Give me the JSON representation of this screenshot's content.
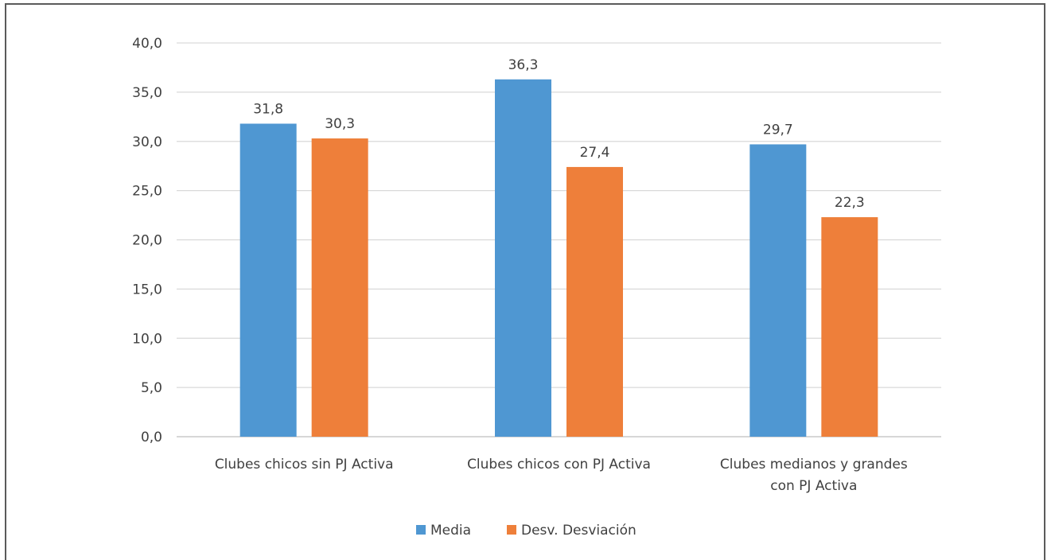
{
  "chart_data": {
    "type": "bar",
    "title": "",
    "xlabel": "",
    "ylabel": "",
    "ylim": [
      0,
      40
    ],
    "y_ticks": [
      "0,0",
      "5,0",
      "10,0",
      "15,0",
      "20,0",
      "25,0",
      "30,0",
      "35,0",
      "40,0"
    ],
    "grid": true,
    "legend_position": "bottom-center",
    "categories": [
      [
        "Clubes chicos sin PJ Activa"
      ],
      [
        "Clubes chicos con PJ Activa"
      ],
      [
        "Clubes medianos y grandes",
        "con PJ Activa"
      ]
    ],
    "series": [
      {
        "name": "Media",
        "color": "#4f97d2",
        "values": [
          31.8,
          36.3,
          29.7
        ],
        "labels": [
          "31,8",
          "36,3",
          "29,7"
        ]
      },
      {
        "name": "Desv. Desviación",
        "color": "#ee7f3a",
        "values": [
          30.3,
          27.4,
          22.3
        ],
        "labels": [
          "30,3",
          "27,4",
          "22,3"
        ]
      }
    ]
  }
}
